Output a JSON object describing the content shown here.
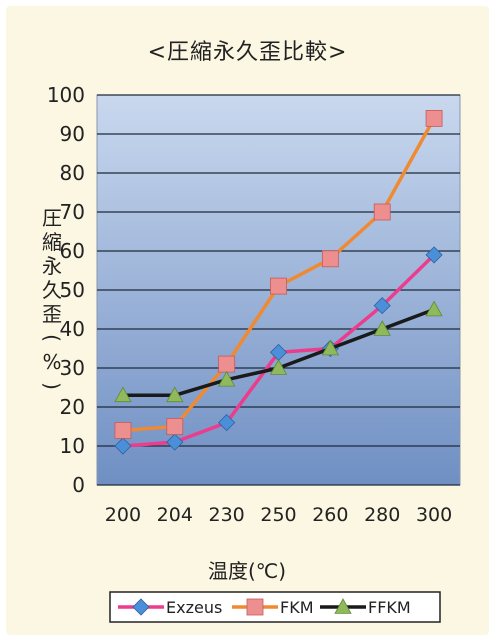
{
  "chart_data": {
    "type": "line",
    "title": "<圧縮永久歪比較>",
    "xlabel": "温度(℃)",
    "ylabel": "圧縮永久歪(%)",
    "categories": [
      "200",
      "204",
      "230",
      "250",
      "260",
      "280",
      "300"
    ],
    "ylim": [
      0,
      100
    ],
    "yticks": [
      0,
      10,
      20,
      30,
      40,
      50,
      60,
      70,
      80,
      90,
      100
    ],
    "grid": true,
    "legend_position": "bottom",
    "series": [
      {
        "name": "Exzeus",
        "marker": "diamond",
        "color": "#ec3c8c",
        "marker_color": "#4a8fd8",
        "values": [
          10,
          11,
          16,
          34,
          35,
          46,
          59
        ]
      },
      {
        "name": "FKM",
        "marker": "square",
        "color": "#f08a32",
        "marker_color": "#ee8f8f",
        "values": [
          14,
          15,
          31,
          51,
          58,
          70,
          94
        ]
      },
      {
        "name": "FFKM",
        "marker": "triangle",
        "color": "#1a1a1a",
        "marker_color": "#8fb95a",
        "values": [
          23,
          23,
          27,
          30,
          35,
          40,
          45
        ]
      }
    ]
  }
}
